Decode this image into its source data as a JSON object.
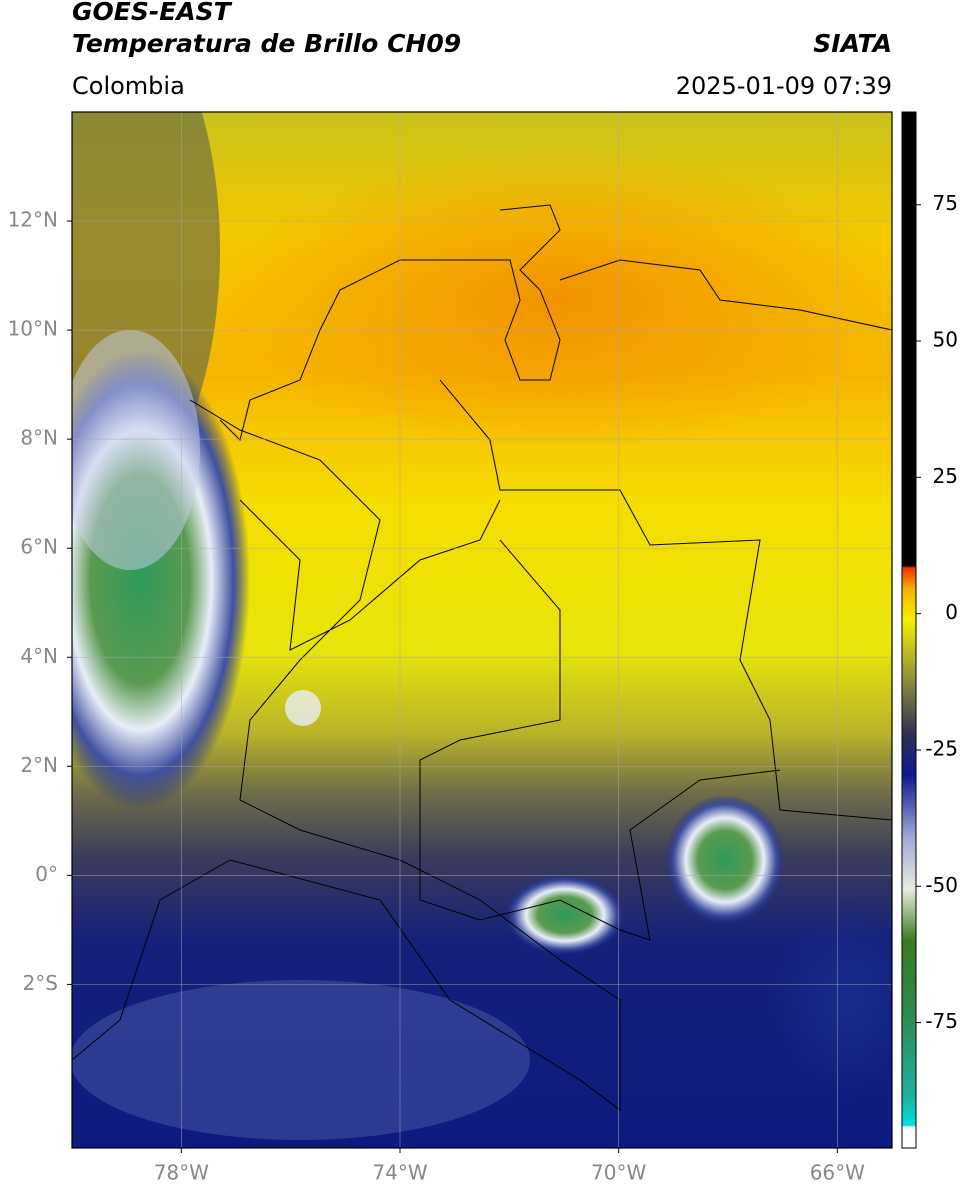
{
  "header": {
    "title": "GOES-EAST",
    "subtitle": "Temperatura de Brillo CH09",
    "source": "SIATA",
    "region": "Colombia",
    "datetime": "2025-01-09 07:39"
  },
  "map": {
    "xlim": [
      -80,
      -65
    ],
    "ylim": [
      -5,
      14
    ],
    "xticks": [
      {
        "value": -78,
        "label": "78°W"
      },
      {
        "value": -74,
        "label": "74°W"
      },
      {
        "value": -70,
        "label": "70°W"
      },
      {
        "value": -66,
        "label": "66°W"
      }
    ],
    "yticks": [
      {
        "value": 12,
        "label": "12°N"
      },
      {
        "value": 10,
        "label": "10°N"
      },
      {
        "value": 8,
        "label": "8°N"
      },
      {
        "value": 6,
        "label": "6°N"
      },
      {
        "value": 4,
        "label": "4°N"
      },
      {
        "value": 2,
        "label": "2°N"
      },
      {
        "value": 0,
        "label": "0°"
      },
      {
        "value": -2,
        "label": "2°S"
      }
    ],
    "grid": true
  },
  "colorbar": {
    "lim": [
      -98,
      92
    ],
    "ticks": [
      75,
      50,
      25,
      0,
      -25,
      -50,
      -75
    ]
  }
}
